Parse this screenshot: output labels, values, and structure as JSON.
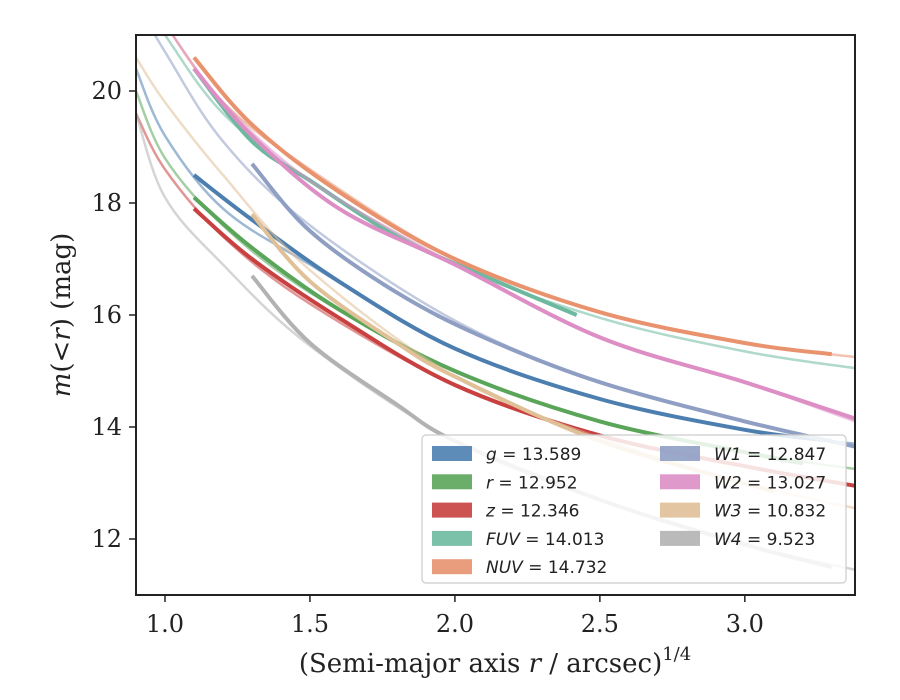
{
  "chart_data": {
    "type": "line",
    "xlabel_main": "(Semi-major axis ",
    "xlabel_r": "r",
    "xlabel_tail": " / arcsec)",
    "xlabel_exp": "1/4",
    "ylabel_m": "m",
    "ylabel_paren": "(<",
    "ylabel_r": "r",
    "ylabel_tail": ") (mag)",
    "xlim": [
      0.9,
      3.38
    ],
    "ylim": [
      21.0,
      11.0
    ],
    "y_inverted": true,
    "xticks": [
      1.0,
      1.5,
      2.0,
      2.5,
      3.0
    ],
    "xtick_labels": [
      "1.0",
      "1.5",
      "2.0",
      "2.5",
      "3.0"
    ],
    "yticks": [
      12,
      14,
      16,
      18,
      20
    ],
    "ytick_labels": [
      "12",
      "14",
      "16",
      "18",
      "20"
    ],
    "grid": false,
    "legend_position": "lower-right",
    "legend_columns": 2,
    "series": [
      {
        "name": "g",
        "band_label": "g",
        "total_label": "= 13.589",
        "color": "#4c7fb0",
        "model": {
          "x": [
            0.9,
            1.0,
            1.2,
            1.5,
            2.0,
            2.5,
            3.0,
            3.38
          ],
          "y": [
            20.4,
            19.2,
            17.9,
            16.9,
            15.4,
            14.5,
            13.95,
            13.7
          ]
        },
        "data": {
          "x": [
            1.1,
            1.3,
            1.6,
            2.0,
            2.5,
            3.0,
            3.3
          ],
          "y": [
            18.5,
            17.7,
            16.6,
            15.4,
            14.5,
            13.95,
            13.75
          ]
        }
      },
      {
        "name": "r",
        "band_label": "r",
        "total_label": "= 12.952",
        "color": "#5aa55a",
        "model": {
          "x": [
            0.9,
            1.0,
            1.2,
            1.5,
            2.0,
            2.5,
            3.0,
            3.38
          ],
          "y": [
            20.0,
            18.8,
            17.6,
            16.4,
            15.0,
            14.1,
            13.55,
            13.25
          ]
        },
        "data": {
          "x": [
            1.1,
            1.3,
            1.6,
            2.0,
            2.5,
            3.0,
            3.2
          ],
          "y": [
            18.1,
            17.2,
            16.1,
            15.0,
            14.1,
            13.55,
            13.35
          ]
        }
      },
      {
        "name": "z",
        "band_label": "z",
        "total_label": "= 12.346",
        "color": "#c84040",
        "model": {
          "x": [
            0.9,
            1.0,
            1.2,
            1.5,
            2.0,
            2.5,
            3.0,
            3.38
          ],
          "y": [
            19.6,
            18.6,
            17.4,
            16.2,
            14.75,
            13.85,
            13.3,
            12.95
          ]
        },
        "data": {
          "x": [
            1.1,
            1.3,
            1.6,
            2.0,
            2.5,
            3.0,
            3.38
          ],
          "y": [
            17.9,
            17.0,
            15.95,
            14.75,
            13.85,
            13.3,
            12.95
          ]
        }
      },
      {
        "name": "FUV",
        "band_label": "FUV",
        "total_label": "= 14.013",
        "color": "#6db9a0",
        "model": {
          "x": [
            0.9,
            1.0,
            1.2,
            1.5,
            2.0,
            2.5,
            3.0,
            3.38
          ],
          "y": [
            21.8,
            21.0,
            19.6,
            18.4,
            16.9,
            15.95,
            15.35,
            15.05
          ]
        },
        "data": {
          "x": [
            1.1,
            1.3,
            1.5,
            1.8,
            2.1,
            2.42
          ],
          "y": [
            20.4,
            19.1,
            18.4,
            17.4,
            16.7,
            16.0
          ]
        }
      },
      {
        "name": "NUV",
        "band_label": "NUV",
        "total_label": "= 14.732",
        "color": "#e8926e",
        "model": {
          "x": [
            0.9,
            1.0,
            1.2,
            1.5,
            2.0,
            2.5,
            3.0,
            3.38
          ],
          "y": [
            22.0,
            21.2,
            19.8,
            18.6,
            17.0,
            16.05,
            15.5,
            15.25
          ]
        },
        "data": {
          "x": [
            1.1,
            1.3,
            1.6,
            2.0,
            2.5,
            3.0,
            3.3
          ],
          "y": [
            20.6,
            19.4,
            18.2,
            17.0,
            16.05,
            15.5,
            15.3
          ]
        }
      },
      {
        "name": "W1",
        "band_label": "W1",
        "total_label": "= 12.847",
        "color": "#8f9fc4",
        "model": {
          "x": [
            0.9,
            1.0,
            1.2,
            1.5,
            2.0,
            2.5,
            3.0,
            3.38
          ],
          "y": [
            21.6,
            20.7,
            19.1,
            17.6,
            15.9,
            14.8,
            14.1,
            13.65
          ]
        },
        "data": {
          "x": [
            1.3,
            1.5,
            1.8,
            2.1,
            2.5,
            3.0,
            3.38
          ],
          "y": [
            18.7,
            17.5,
            16.4,
            15.6,
            14.8,
            14.1,
            13.65
          ]
        }
      },
      {
        "name": "W2",
        "band_label": "W2",
        "total_label": "= 13.027",
        "color": "#dd8ec5",
        "model": {
          "x": [
            0.9,
            1.0,
            1.2,
            1.5,
            2.0,
            2.5,
            3.0,
            3.38
          ],
          "y": [
            22.0,
            21.2,
            19.8,
            18.4,
            16.9,
            15.6,
            14.8,
            14.1
          ]
        },
        "data": {
          "x": [
            1.1,
            1.3,
            1.6,
            2.0,
            2.5,
            3.0,
            3.38
          ],
          "y": [
            20.4,
            19.2,
            17.9,
            16.9,
            15.6,
            14.8,
            14.15
          ]
        }
      },
      {
        "name": "W3",
        "band_label": "W3",
        "total_label": "= 10.832",
        "color": "#e0c097",
        "model": {
          "x": [
            0.9,
            1.0,
            1.2,
            1.5,
            2.0,
            2.5,
            3.0,
            3.38
          ],
          "y": [
            20.6,
            19.8,
            18.5,
            16.8,
            14.9,
            13.8,
            13.0,
            12.55
          ]
        },
        "data": {
          "x": [
            1.3,
            1.5,
            1.8,
            2.0,
            2.5,
            3.1
          ],
          "y": [
            17.8,
            16.6,
            15.5,
            14.9,
            13.75,
            12.85
          ]
        }
      },
      {
        "name": "W4",
        "band_label": "W4",
        "total_label": "= 9.523",
        "color": "#b2b2b2",
        "model": {
          "x": [
            0.9,
            1.0,
            1.2,
            1.5,
            2.0,
            2.5,
            3.0,
            3.38
          ],
          "y": [
            19.6,
            18.1,
            16.9,
            15.45,
            13.75,
            12.7,
            11.9,
            11.45
          ]
        },
        "data": {
          "x": [
            1.3,
            1.5,
            1.8,
            2.0,
            2.5,
            3.0,
            3.3
          ],
          "y": [
            16.7,
            15.5,
            14.4,
            13.75,
            12.7,
            11.9,
            11.5
          ]
        }
      }
    ]
  }
}
